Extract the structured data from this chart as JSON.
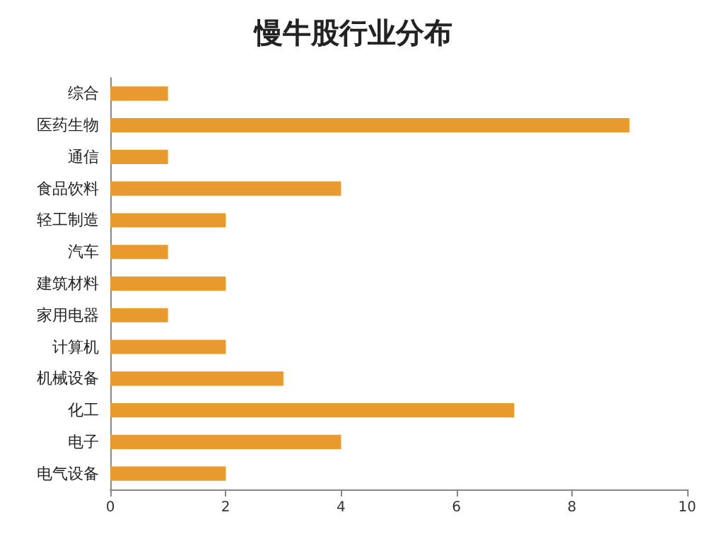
{
  "chart_data": {
    "type": "bar",
    "title": "慢牛股行业分布",
    "orientation": "horizontal",
    "categories": [
      "综合",
      "医药生物",
      "通信",
      "食品饮料",
      "轻工制造",
      "汽车",
      "建筑材料",
      "家用电器",
      "计算机",
      "机械设备",
      "化工",
      "电子",
      "电气设备"
    ],
    "values": [
      1,
      9,
      1,
      4,
      2,
      1,
      2,
      1,
      2,
      3,
      7,
      4,
      2
    ],
    "color": "#e89a2c",
    "xlim": [
      0,
      10
    ],
    "xticks": [
      0,
      2,
      4,
      6,
      8,
      10
    ],
    "grid": false
  }
}
